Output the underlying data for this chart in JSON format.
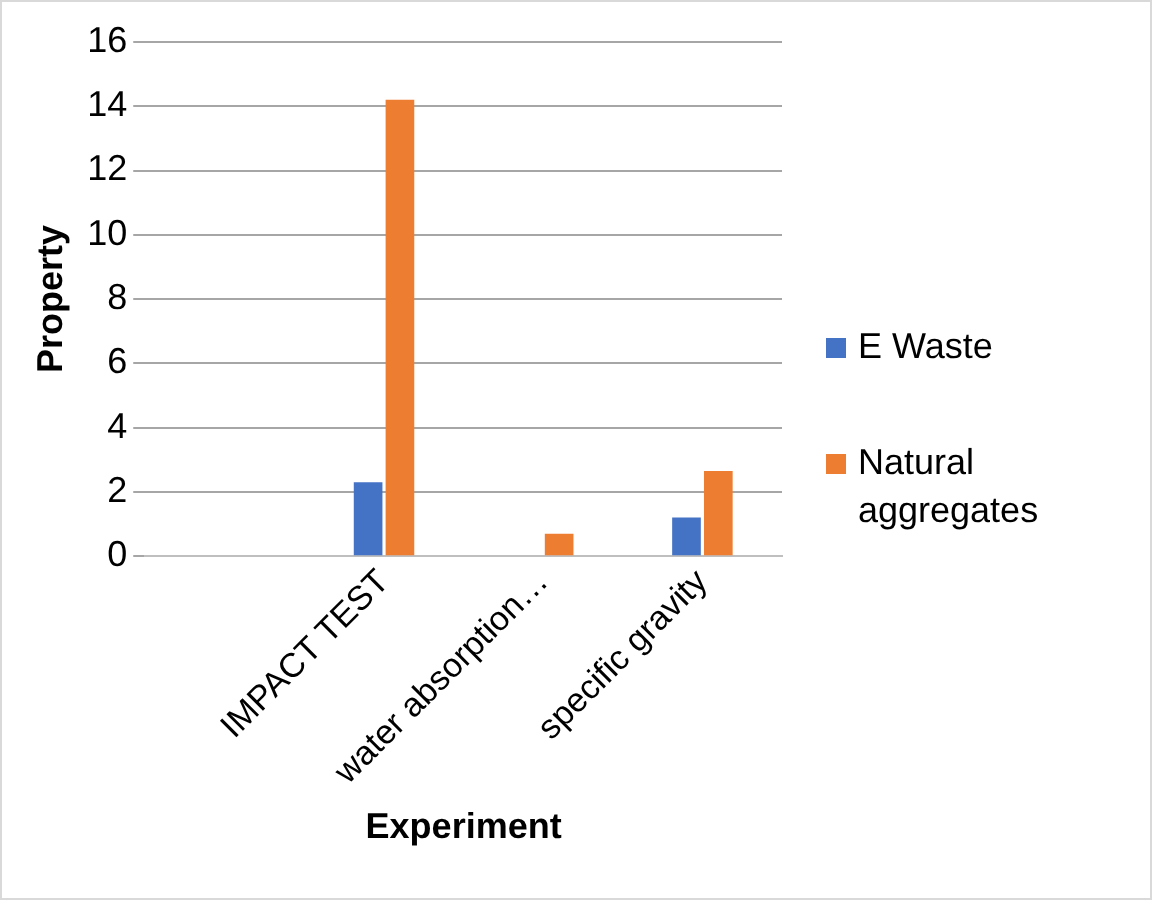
{
  "chart_data": {
    "type": "bar",
    "xlabel": "Experiment",
    "ylabel": "Property",
    "categories": [
      null,
      "IMPACT TEST",
      "water absorption…",
      "specific gravity"
    ],
    "series": [
      {
        "name": "E Waste",
        "color": "#4472c4",
        "values": [
          null,
          2.3,
          null,
          1.2
        ]
      },
      {
        "name": "Natural aggregates",
        "color": "#ed7d31",
        "values": [
          null,
          14.2,
          0.7,
          2.65
        ]
      }
    ],
    "ylim": [
      0,
      16
    ],
    "yticks": [
      0,
      2,
      4,
      6,
      8,
      10,
      12,
      14,
      16
    ],
    "grid": "y",
    "legend": "right"
  }
}
